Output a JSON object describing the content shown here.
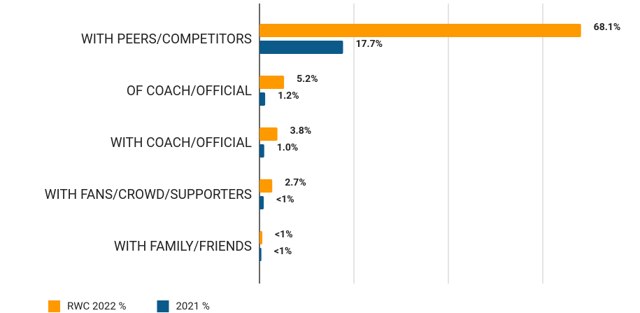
{
  "chart_data": {
    "type": "bar",
    "orientation": "horizontal",
    "categories": [
      "WITH PEERS/COMPETITORS",
      "OF COACH/OFFICIAL",
      "WITH COACH/OFFICIAL",
      "WITH FANS/CROWD/SUPPORTERS",
      "WITH FAMILY/FRIENDS"
    ],
    "series": [
      {
        "name": "RWC 2022 %",
        "color": "#ff9900",
        "values": [
          68.1,
          5.2,
          3.8,
          2.7,
          0.6
        ],
        "value_labels": [
          "68.1%",
          "5.2%",
          "3.8%",
          "2.7%",
          "<1%"
        ]
      },
      {
        "name": "2021 %",
        "color": "#0b5a8a",
        "values": [
          17.7,
          1.2,
          1.0,
          0.9,
          0.4
        ],
        "value_labels": [
          "17.7%",
          "1.2%",
          "1.0%",
          "<1%",
          "<1%"
        ]
      }
    ],
    "xlim": [
      0,
      80
    ],
    "xticks": [
      0,
      20,
      40,
      60
    ],
    "grid": true,
    "legend": "bottom-left"
  }
}
